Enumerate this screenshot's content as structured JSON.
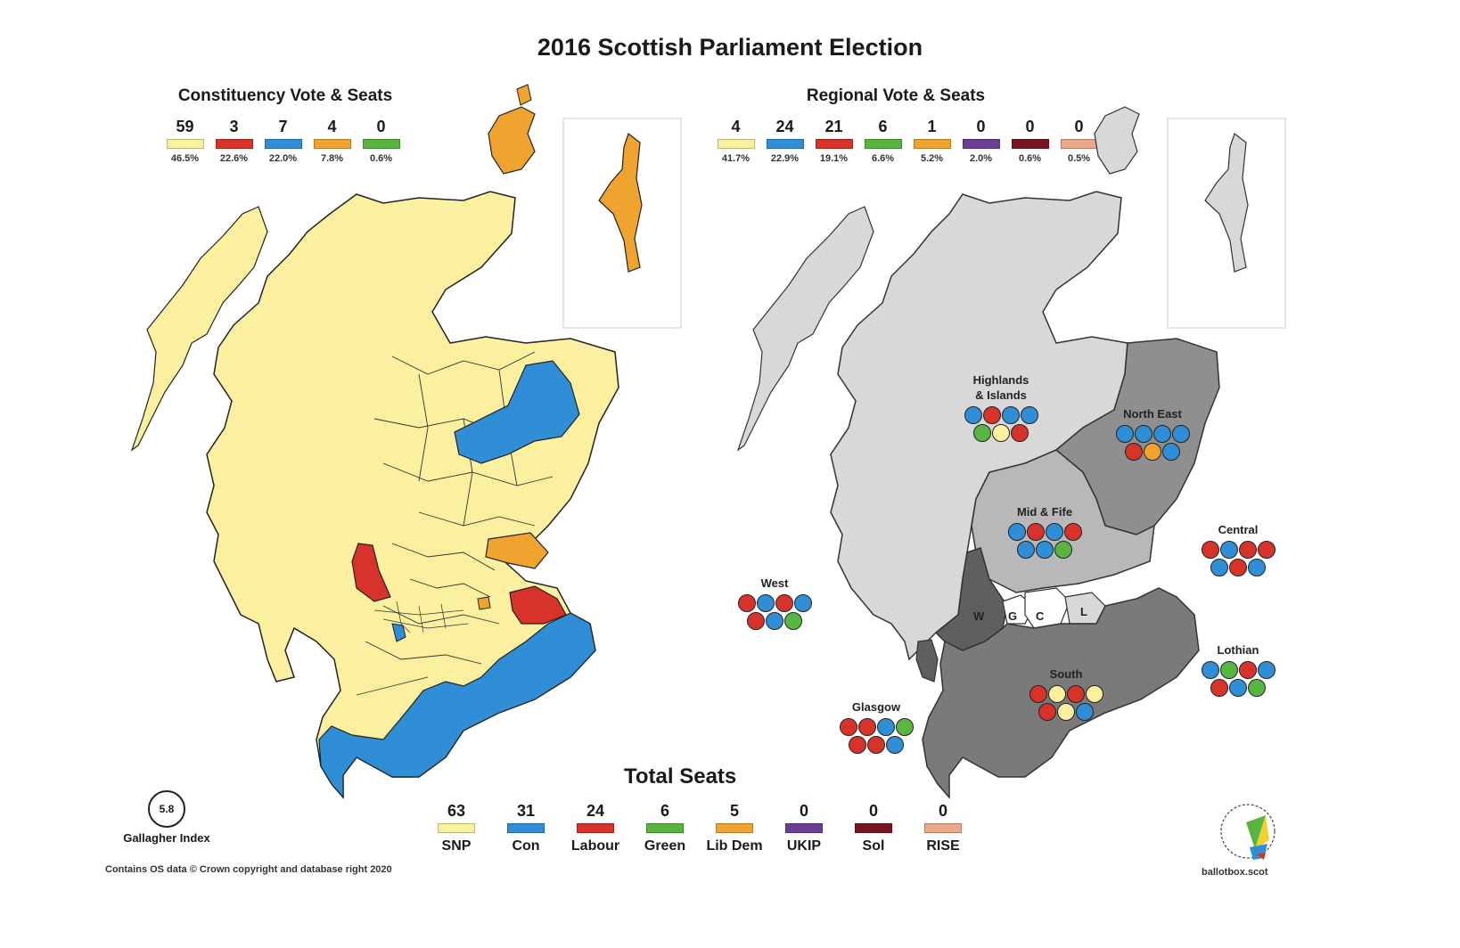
{
  "title": "2016 Scottish Parliament Election",
  "constituency": {
    "heading": "Constituency Vote & Seats",
    "parties": [
      {
        "seats": "59",
        "pct": "46.5%",
        "color": "#fbf0a0"
      },
      {
        "seats": "3",
        "pct": "22.6%",
        "color": "#d8332b"
      },
      {
        "seats": "7",
        "pct": "22.0%",
        "color": "#2f8ed6"
      },
      {
        "seats": "4",
        "pct": "7.8%",
        "color": "#f0a430"
      },
      {
        "seats": "0",
        "pct": "0.6%",
        "color": "#58b640"
      }
    ]
  },
  "regional": {
    "heading": "Regional Vote & Seats",
    "parties": [
      {
        "seats": "4",
        "pct": "41.7%",
        "color": "#fbf0a0"
      },
      {
        "seats": "24",
        "pct": "22.9%",
        "color": "#2f8ed6"
      },
      {
        "seats": "21",
        "pct": "19.1%",
        "color": "#d8332b"
      },
      {
        "seats": "6",
        "pct": "6.6%",
        "color": "#58b640"
      },
      {
        "seats": "1",
        "pct": "5.2%",
        "color": "#f0a430"
      },
      {
        "seats": "0",
        "pct": "2.0%",
        "color": "#6c3d95"
      },
      {
        "seats": "0",
        "pct": "0.6%",
        "color": "#7a1522"
      },
      {
        "seats": "0",
        "pct": "0.5%",
        "color": "#eba98a"
      }
    ]
  },
  "regions": [
    {
      "key": "highlands",
      "label_lines": [
        "Highlands",
        "& Islands"
      ],
      "rows": [
        [
          "B",
          "R",
          "B",
          "B"
        ],
        [
          "G",
          "Y",
          "R"
        ]
      ]
    },
    {
      "key": "north-east",
      "label_lines": [
        "North East"
      ],
      "rows": [
        [
          "B",
          "B",
          "B",
          "B"
        ],
        [
          "R",
          "O",
          "B"
        ]
      ]
    },
    {
      "key": "mid-fife",
      "label_lines": [
        "Mid & Fife"
      ],
      "rows": [
        [
          "B",
          "R",
          "B",
          "R"
        ],
        [
          "B",
          "B",
          "G"
        ]
      ]
    },
    {
      "key": "central",
      "label_lines": [
        "Central"
      ],
      "rows": [
        [
          "R",
          "B",
          "R",
          "R"
        ],
        [
          "B",
          "R",
          "B"
        ]
      ]
    },
    {
      "key": "west",
      "label_lines": [
        "West"
      ],
      "rows": [
        [
          "R",
          "B",
          "R",
          "B"
        ],
        [
          "R",
          "B",
          "G"
        ]
      ]
    },
    {
      "key": "lothian",
      "label_lines": [
        "Lothian"
      ],
      "rows": [
        [
          "B",
          "G",
          "R",
          "B"
        ],
        [
          "R",
          "B",
          "G"
        ]
      ]
    },
    {
      "key": "south",
      "label_lines": [
        "South"
      ],
      "rows": [
        [
          "R",
          "Y",
          "R",
          "Y"
        ],
        [
          "R",
          "Y",
          "B"
        ]
      ]
    },
    {
      "key": "glasgow",
      "label_lines": [
        "Glasgow"
      ],
      "rows": [
        [
          "R",
          "R",
          "B",
          "G"
        ],
        [
          "R",
          "R",
          "B"
        ]
      ]
    }
  ],
  "seat_colors": {
    "B": "#2f8ed6",
    "R": "#d8332b",
    "G": "#58b640",
    "Y": "#fbf0a0",
    "O": "#f0a430"
  },
  "map_letters": {
    "w": "W",
    "g": "G",
    "c": "C",
    "l": "L"
  },
  "total": {
    "heading": "Total Seats",
    "parties": [
      {
        "seats": "63",
        "name": "SNP",
        "color": "#fbf0a0"
      },
      {
        "seats": "31",
        "name": "Con",
        "color": "#2f8ed6"
      },
      {
        "seats": "24",
        "name": "Labour",
        "color": "#d8332b"
      },
      {
        "seats": "6",
        "name": "Green",
        "color": "#58b640"
      },
      {
        "seats": "5",
        "name": "Lib Dem",
        "color": "#f0a430"
      },
      {
        "seats": "0",
        "name": "UKIP",
        "color": "#6c3d95"
      },
      {
        "seats": "0",
        "name": "Sol",
        "color": "#7a1522"
      },
      {
        "seats": "0",
        "name": "RISE",
        "color": "#eba98a"
      }
    ]
  },
  "gallagher": {
    "value": "5.8",
    "label": "Gallagher Index"
  },
  "copyright": "Contains OS data © Crown copyright and database right 2020",
  "logo": {
    "url": "ballotbox.scot"
  }
}
